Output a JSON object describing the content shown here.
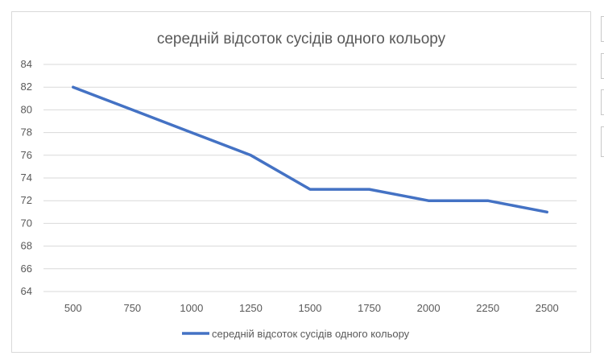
{
  "chart_data": {
    "type": "line",
    "title": "середній відсоток сусідів одного кольору",
    "xlabel": "",
    "ylabel": "",
    "categories": [
      "500",
      "750",
      "1000",
      "1250",
      "1500",
      "1750",
      "2000",
      "2250",
      "2500"
    ],
    "series": [
      {
        "name": "середній відсоток сусідів одного кольору",
        "values": [
          82,
          80,
          78,
          76,
          73,
          73,
          72,
          72,
          71
        ],
        "color": "#4472c4"
      }
    ],
    "ylim": [
      64,
      84
    ],
    "yticks": [
      "64",
      "66",
      "68",
      "70",
      "72",
      "74",
      "76",
      "78",
      "80",
      "82",
      "84"
    ],
    "grid": true,
    "legend_position": "bottom"
  }
}
